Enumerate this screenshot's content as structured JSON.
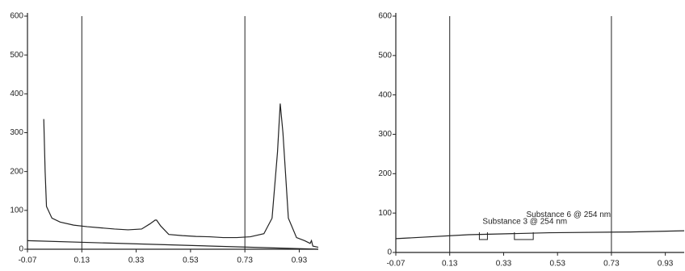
{
  "chart_data": [
    {
      "type": "line",
      "xlim": [
        -0.07,
        1.0
      ],
      "ylim": [
        0,
        600
      ],
      "xticks": [
        -0.07,
        0.13,
        0.33,
        0.53,
        0.73,
        0.93
      ],
      "yticks": [
        0,
        100,
        200,
        300,
        400,
        500,
        600
      ],
      "vlines": [
        0.13,
        0.73
      ],
      "series": [
        {
          "color": "#222222",
          "x": [
            -0.01,
            -0.005,
            0.0,
            0.02,
            0.05,
            0.1,
            0.15,
            0.2,
            0.25,
            0.3,
            0.35,
            0.38,
            0.4,
            0.405,
            0.42,
            0.45,
            0.5,
            0.55,
            0.6,
            0.65,
            0.7,
            0.75,
            0.8,
            0.83,
            0.85,
            0.86,
            0.87,
            0.89,
            0.92,
            0.95,
            0.97,
            0.975,
            0.98,
            1.0
          ],
          "values": [
            335,
            200,
            110,
            80,
            70,
            62,
            58,
            55,
            52,
            50,
            52,
            65,
            75,
            75,
            60,
            38,
            35,
            33,
            32,
            30,
            30,
            32,
            40,
            80,
            250,
            375,
            300,
            80,
            30,
            22,
            15,
            22,
            8,
            5
          ]
        },
        {
          "color": "#222222",
          "x": [
            -0.07,
            1.0
          ],
          "values": [
            22,
            0
          ]
        }
      ]
    },
    {
      "type": "line",
      "xlim": [
        -0.07,
        1.0
      ],
      "ylim": [
        0,
        600
      ],
      "xticks": [
        -0.07,
        0.13,
        0.33,
        0.53,
        0.73,
        0.93
      ],
      "yticks": [
        0,
        100,
        200,
        300,
        400,
        500,
        600
      ],
      "vlines": [
        0.13,
        0.73
      ],
      "series": [
        {
          "color": "#222222",
          "x": [
            -0.07,
            0.2,
            0.5,
            0.8,
            1.0
          ],
          "values": [
            35,
            45,
            50,
            52,
            55
          ]
        }
      ],
      "peaks": [
        {
          "x_start": 0.24,
          "x_end": 0.27,
          "y": 45
        },
        {
          "x_start": 0.37,
          "x_end": 0.44,
          "y": 45
        }
      ],
      "annotations": [
        {
          "text": "Substance 6 @ 254 nm",
          "x": 0.414,
          "y": 96
        },
        {
          "text": "Substance 3 @ 254 nm",
          "x": 0.252,
          "y": 78
        }
      ]
    }
  ]
}
